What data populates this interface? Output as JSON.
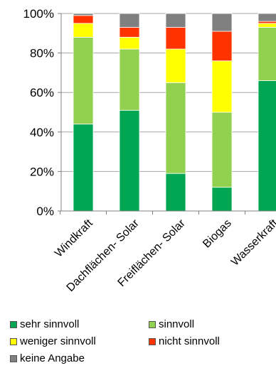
{
  "chart_data": {
    "type": "bar",
    "stacked": true,
    "categories": [
      "Windkraft",
      "Dachflächen- Solar",
      "Freiflächen- Solar",
      "Biogas",
      "Wasserkraft"
    ],
    "series": [
      {
        "name": "sehr sinnvoll",
        "color": "#00a651",
        "values": [
          44,
          51,
          19,
          12,
          66
        ]
      },
      {
        "name": "sinnvoll",
        "color": "#92d050",
        "values": [
          44,
          31,
          46,
          38,
          27
        ]
      },
      {
        "name": "weniger sinnvoll",
        "color": "#ffff00",
        "values": [
          7,
          6,
          17,
          26,
          2
        ]
      },
      {
        "name": "nicht sinnvoll",
        "color": "#ff3300",
        "values": [
          4,
          5,
          11,
          15,
          1
        ]
      },
      {
        "name": "keine Angabe",
        "color": "#808080",
        "values": [
          1,
          7,
          7,
          9,
          4
        ]
      }
    ],
    "ylim": [
      0,
      100
    ],
    "yticks": [
      "0%",
      "20%",
      "40%",
      "60%",
      "80%",
      "100%"
    ],
    "grid": true,
    "legend_position": "bottom"
  }
}
